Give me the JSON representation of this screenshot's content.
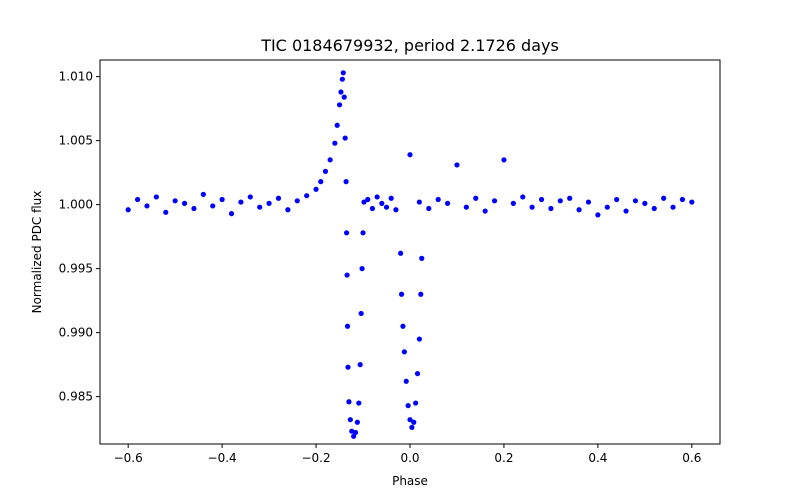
{
  "chart_data": {
    "type": "scatter",
    "title": "TIC 0184679932, period 2.1726 days",
    "xlabel": "Phase",
    "ylabel": "Normalized PDC flux",
    "xlim": [
      -0.66,
      0.66
    ],
    "ylim": [
      0.9813,
      1.0113
    ],
    "xticks": [
      -0.6,
      -0.4,
      -0.2,
      0.0,
      0.2,
      0.4,
      0.6
    ],
    "xtick_labels": [
      "−0.6",
      "−0.4",
      "−0.2",
      "0.0",
      "0.2",
      "0.4",
      "0.6"
    ],
    "yticks": [
      0.985,
      0.99,
      0.995,
      1.0,
      1.005,
      1.01
    ],
    "ytick_labels": [
      "0.985",
      "0.990",
      "0.995",
      "1.000",
      "1.005",
      "1.010"
    ],
    "grid": false,
    "marker_color": "#0000ff",
    "series": [
      {
        "points": [
          [
            -0.6,
            0.9996
          ],
          [
            -0.58,
            1.0004
          ],
          [
            -0.56,
            0.9999
          ],
          [
            -0.54,
            1.0006
          ],
          [
            -0.52,
            0.9994
          ],
          [
            -0.5,
            1.0003
          ],
          [
            -0.48,
            1.0001
          ],
          [
            -0.46,
            0.9997
          ],
          [
            -0.44,
            1.0008
          ],
          [
            -0.42,
            0.9999
          ],
          [
            -0.4,
            1.0004
          ],
          [
            -0.38,
            0.9993
          ],
          [
            -0.36,
            1.0002
          ],
          [
            -0.34,
            1.0006
          ],
          [
            -0.32,
            0.9998
          ],
          [
            -0.3,
            1.0001
          ],
          [
            -0.28,
            1.0005
          ],
          [
            -0.26,
            0.9996
          ],
          [
            -0.24,
            1.0003
          ],
          [
            -0.22,
            1.0007
          ],
          [
            -0.2,
            1.0012
          ],
          [
            -0.19,
            1.0018
          ],
          [
            -0.18,
            1.0026
          ],
          [
            -0.17,
            1.0035
          ],
          [
            -0.16,
            1.0048
          ],
          [
            -0.155,
            1.0062
          ],
          [
            -0.15,
            1.0078
          ],
          [
            -0.147,
            1.0088
          ],
          [
            -0.144,
            1.0098
          ],
          [
            -0.142,
            1.0103
          ],
          [
            -0.14,
            1.0084
          ],
          [
            -0.138,
            1.0052
          ],
          [
            -0.136,
            1.0018
          ],
          [
            -0.135,
            0.9978
          ],
          [
            -0.134,
            0.9945
          ],
          [
            -0.133,
            0.9905
          ],
          [
            -0.132,
            0.9873
          ],
          [
            -0.13,
            0.9846
          ],
          [
            -0.127,
            0.9832
          ],
          [
            -0.124,
            0.9823
          ],
          [
            -0.12,
            0.9819
          ],
          [
            -0.116,
            0.9822
          ],
          [
            -0.112,
            0.983
          ],
          [
            -0.109,
            0.9845
          ],
          [
            -0.106,
            0.9875
          ],
          [
            -0.104,
            0.9915
          ],
          [
            -0.102,
            0.995
          ],
          [
            -0.1,
            0.9978
          ],
          [
            -0.098,
            1.0002
          ],
          [
            -0.09,
            1.0004
          ],
          [
            -0.08,
            0.9997
          ],
          [
            -0.07,
            1.0006
          ],
          [
            -0.06,
            1.0001
          ],
          [
            -0.05,
            0.9998
          ],
          [
            -0.04,
            1.0005
          ],
          [
            -0.03,
            0.9996
          ],
          [
            -0.02,
            0.9962
          ],
          [
            -0.018,
            0.993
          ],
          [
            -0.015,
            0.9905
          ],
          [
            -0.012,
            0.9885
          ],
          [
            -0.008,
            0.9862
          ],
          [
            -0.004,
            0.9843
          ],
          [
            0.0,
            0.9832
          ],
          [
            0.004,
            0.9826
          ],
          [
            0.008,
            0.983
          ],
          [
            0.012,
            0.9845
          ],
          [
            0.016,
            0.9868
          ],
          [
            0.02,
            0.9895
          ],
          [
            0.023,
            0.993
          ],
          [
            0.025,
            0.9958
          ],
          [
            0.0,
            1.0039
          ],
          [
            0.02,
            1.0002
          ],
          [
            0.04,
            0.9997
          ],
          [
            0.06,
            1.0004
          ],
          [
            0.08,
            1.0001
          ],
          [
            0.1,
            1.0031
          ],
          [
            0.12,
            0.9998
          ],
          [
            0.14,
            1.0005
          ],
          [
            0.16,
            0.9995
          ],
          [
            0.18,
            1.0003
          ],
          [
            0.2,
            1.0035
          ],
          [
            0.22,
            1.0001
          ],
          [
            0.24,
            1.0006
          ],
          [
            0.26,
            0.9998
          ],
          [
            0.28,
            1.0004
          ],
          [
            0.3,
            0.9997
          ],
          [
            0.32,
            1.0003
          ],
          [
            0.34,
            1.0005
          ],
          [
            0.36,
            0.9996
          ],
          [
            0.38,
            1.0002
          ],
          [
            0.4,
            0.9992
          ],
          [
            0.42,
            0.9998
          ],
          [
            0.44,
            1.0004
          ],
          [
            0.46,
            0.9995
          ],
          [
            0.48,
            1.0003
          ],
          [
            0.5,
            1.0001
          ],
          [
            0.52,
            0.9997
          ],
          [
            0.54,
            1.0005
          ],
          [
            0.56,
            0.9998
          ],
          [
            0.58,
            1.0004
          ],
          [
            0.6,
            1.0002
          ]
        ]
      }
    ]
  }
}
